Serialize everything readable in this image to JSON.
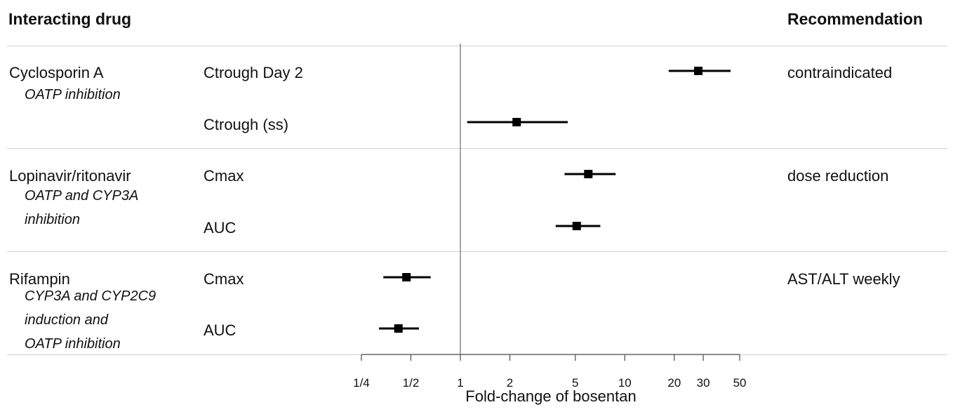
{
  "header": {
    "left_title": "Interacting drug",
    "right_title": "Recommendation"
  },
  "groups": [
    {
      "drug": "Cyclosporin A",
      "mechanism": [
        "OATP inhibition"
      ],
      "recommendation": "contraindicated",
      "rows": [
        "Ctrough Day 2",
        "Ctrough (ss)"
      ]
    },
    {
      "drug": "Lopinavir/ritonavir",
      "mechanism": [
        "OATP and CYP3A",
        "inhibition"
      ],
      "recommendation": "dose reduction",
      "rows": [
        "Cmax",
        "AUC"
      ]
    },
    {
      "drug": "Rifampin",
      "mechanism": [
        "CYP3A and CYP2C9",
        "induction and",
        "OATP inhibition"
      ],
      "recommendation": "AST/ALT weekly",
      "rows": [
        "Cmax",
        "AUC"
      ]
    }
  ],
  "chart_data": {
    "type": "forest",
    "scale": "log",
    "xlabel": "Fold-change of bosentan",
    "reference_line": 1,
    "xlim": [
      0.25,
      50
    ],
    "ticks": [
      {
        "value": 0.25,
        "label": "1/4"
      },
      {
        "value": 0.5,
        "label": "1/2"
      },
      {
        "value": 1,
        "label": "1"
      },
      {
        "value": 2,
        "label": "2"
      },
      {
        "value": 5,
        "label": "5"
      },
      {
        "value": 10,
        "label": "10"
      },
      {
        "value": 20,
        "label": "20"
      },
      {
        "value": 30,
        "label": "30"
      },
      {
        "value": 50,
        "label": "50"
      }
    ],
    "points": [
      {
        "drug": "Cyclosporin A",
        "parameter": "Ctrough Day 2",
        "estimate": 28,
        "lower": 18.5,
        "upper": 44
      },
      {
        "drug": "Cyclosporin A",
        "parameter": "Ctrough (ss)",
        "estimate": 2.2,
        "lower": 1.1,
        "upper": 4.5
      },
      {
        "drug": "Lopinavir/ritonavir",
        "parameter": "Cmax",
        "estimate": 6.0,
        "lower": 4.3,
        "upper": 8.8
      },
      {
        "drug": "Lopinavir/ritonavir",
        "parameter": "AUC",
        "estimate": 5.1,
        "lower": 3.8,
        "upper": 7.1
      },
      {
        "drug": "Rifampin",
        "parameter": "Cmax",
        "estimate": 0.47,
        "lower": 0.34,
        "upper": 0.66
      },
      {
        "drug": "Rifampin",
        "parameter": "AUC",
        "estimate": 0.42,
        "lower": 0.32,
        "upper": 0.56
      }
    ]
  }
}
